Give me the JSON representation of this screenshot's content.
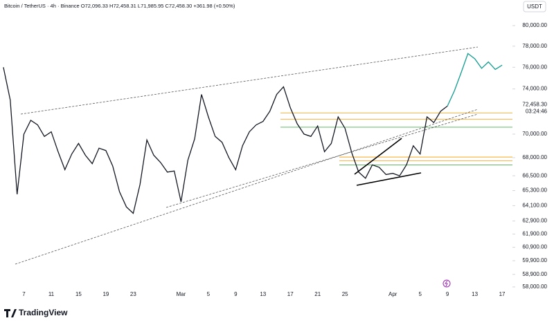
{
  "chart_data": {
    "type": "line",
    "legend_header": "Bitcoin / TetherUS · 4h · Binance O72,096.33 H72,458.31 L71,985.95 C72,458.30 +361.98 (+0.50%)",
    "price_scale_unit": "USDT",
    "log_scale": true,
    "categories": [
      null,
      null,
      null,
      "7",
      null,
      null,
      null,
      "11",
      null,
      null,
      null,
      "15",
      null,
      null,
      null,
      "19",
      null,
      null,
      null,
      "23",
      null,
      null,
      null,
      null,
      null,
      null,
      "Mar",
      null,
      null,
      null,
      "5",
      null,
      null,
      null,
      "9",
      null,
      null,
      null,
      "13",
      null,
      null,
      null,
      "17",
      null,
      null,
      null,
      "21",
      null,
      null,
      null,
      "25",
      null,
      null,
      null,
      null,
      null,
      null,
      "Apr",
      null,
      null,
      null,
      "5",
      null,
      null,
      null,
      "9",
      null,
      null,
      null,
      "13",
      null,
      null,
      null,
      "17"
    ],
    "series": [
      {
        "color": "#131722",
        "values": [
          76000,
          73000,
          65000,
          70000,
          71200,
          70800,
          69800,
          70200,
          68500,
          67000,
          68300,
          69200,
          68200,
          67500,
          68800,
          68600,
          67300,
          65200,
          64000,
          63500,
          65800,
          69500,
          68200,
          67600,
          66800,
          66900,
          64400,
          67800,
          69600,
          73500,
          71500,
          69800,
          69300,
          68000,
          67000,
          69000,
          70200,
          70800,
          71100,
          72000,
          73500,
          74200,
          72300,
          70900,
          70000,
          69800,
          70700,
          68500,
          69200,
          71500,
          70500,
          68400,
          66800,
          66300,
          67400,
          67200,
          66600,
          66700,
          66500,
          67400,
          69000,
          68300,
          71500,
          71000,
          72000,
          72458.3,
          null,
          null,
          null,
          null,
          null,
          null,
          null,
          null
        ]
      },
      {
        "color": "#0f9d8f",
        "values": [
          null,
          null,
          null,
          null,
          null,
          null,
          null,
          null,
          null,
          null,
          null,
          null,
          null,
          null,
          null,
          null,
          null,
          null,
          null,
          null,
          null,
          null,
          null,
          null,
          null,
          null,
          null,
          null,
          null,
          null,
          null,
          null,
          null,
          null,
          null,
          null,
          null,
          null,
          null,
          null,
          null,
          null,
          null,
          null,
          null,
          null,
          null,
          null,
          null,
          null,
          null,
          null,
          null,
          null,
          null,
          null,
          null,
          null,
          null,
          null,
          null,
          null,
          null,
          null,
          null,
          72458.3,
          73800,
          75500,
          77300,
          76800,
          75900,
          76500,
          75800,
          76200
        ]
      }
    ],
    "hlines": [
      {
        "value": 71850,
        "color": "#f5a623"
      },
      {
        "value": 71300,
        "color": "#f5a623"
      },
      {
        "value": 70600,
        "color": "#4caf50"
      },
      {
        "value": 68050,
        "color": "#f5a623"
      },
      {
        "value": 67750,
        "color": "#f5a623"
      },
      {
        "value": 67400,
        "color": "#4caf50"
      }
    ],
    "ylim": [
      57750,
      82000
    ],
    "yticks": [
      {
        "value": 80000,
        "label": "80,000.00"
      },
      {
        "value": 78000,
        "label": "78,000.00"
      },
      {
        "value": 76000,
        "label": "76,000.00"
      },
      {
        "value": 74000,
        "label": "74,000.00"
      },
      {
        "value": 70000,
        "label": "70,000.00"
      },
      {
        "value": 68000,
        "label": "68,000.00"
      },
      {
        "value": 66500,
        "label": "66,500.00"
      },
      {
        "value": 65300,
        "label": "65,300.00"
      },
      {
        "value": 64100,
        "label": "64,100.00"
      },
      {
        "value": 62900,
        "label": "62,900.00"
      },
      {
        "value": 61900,
        "label": "61,900.00"
      },
      {
        "value": 60900,
        "label": "60,900.00"
      },
      {
        "value": 59900,
        "label": "59,900.00"
      },
      {
        "value": 58900,
        "label": "58,900.00"
      },
      {
        "value": 58000,
        "label": "58,000.00"
      }
    ],
    "last_price": {
      "value": 72458.3,
      "label": "72,458.30"
    },
    "countdown": "03:24:46"
  },
  "brand": "TradingView"
}
